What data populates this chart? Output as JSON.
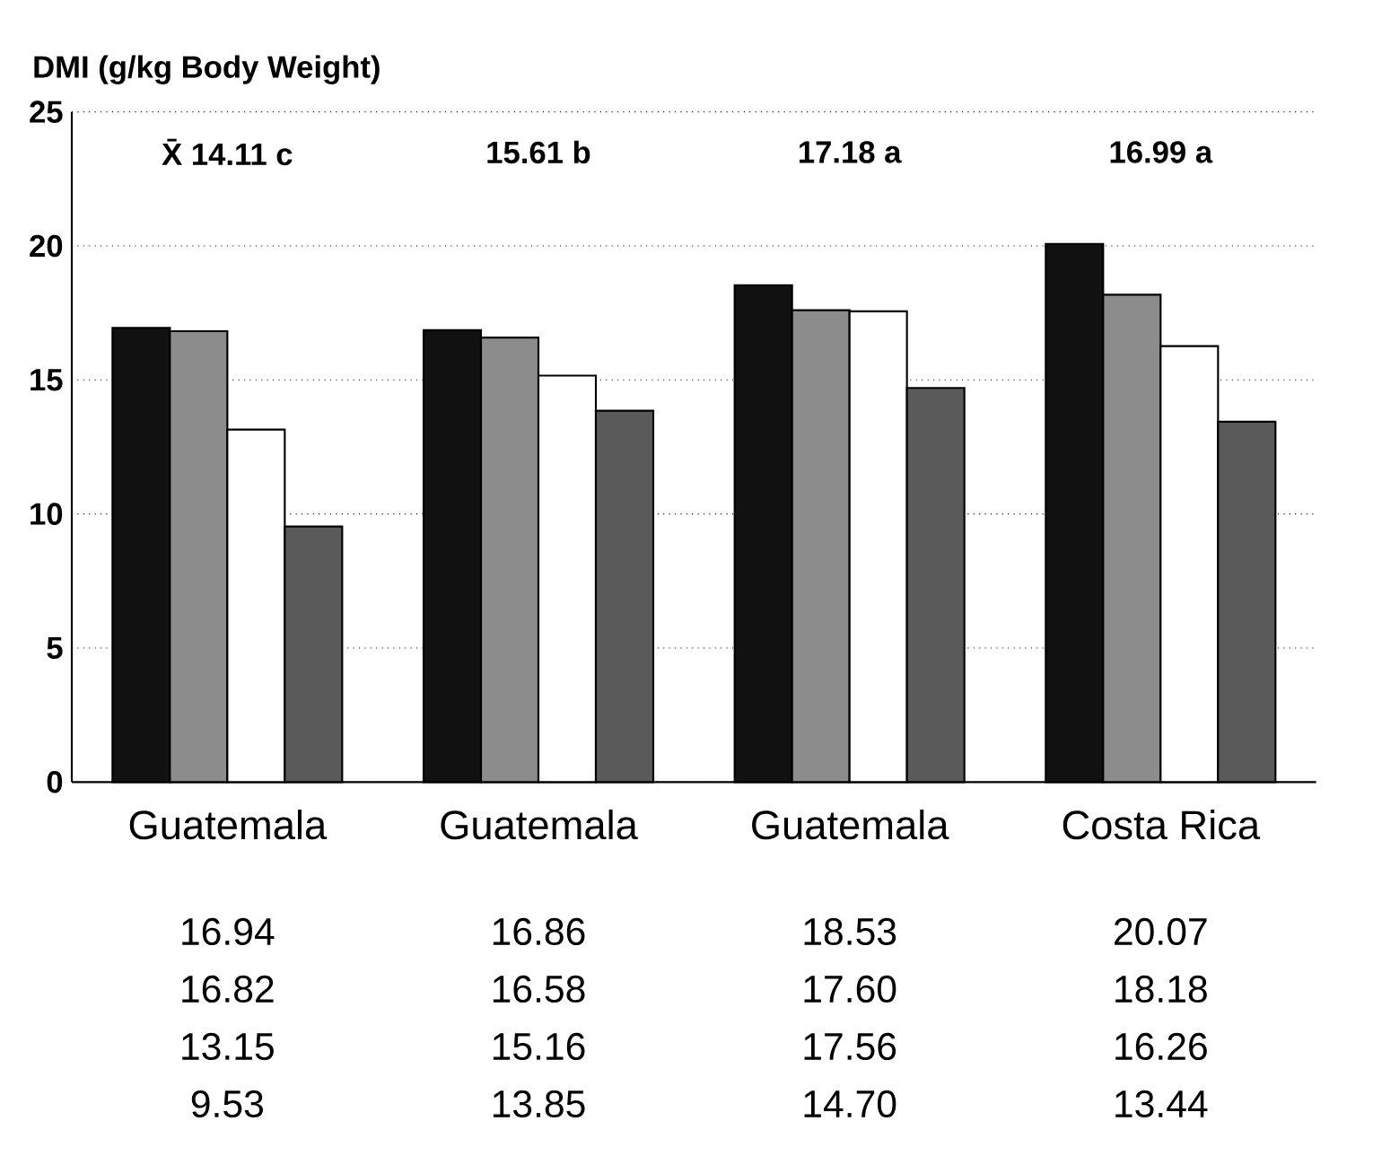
{
  "chart_data": {
    "type": "bar",
    "ylabel": "DMI (g/kg Body Weight)",
    "categories": [
      "Guatemala",
      "Guatemala",
      "Guatemala",
      "Costa Rica"
    ],
    "series": [
      {
        "color": "#111111",
        "values": [
          16.94,
          16.86,
          18.53,
          20.07
        ],
        "value_labels": [
          "16.94",
          "16.86",
          "18.53",
          "20.07"
        ]
      },
      {
        "color": "#8c8c8c",
        "values": [
          16.82,
          16.58,
          17.6,
          18.18
        ],
        "value_labels": [
          "16.82",
          "16.58",
          "17.60",
          "18.18"
        ]
      },
      {
        "color": "#ffffff",
        "values": [
          13.15,
          15.16,
          17.56,
          16.26
        ],
        "value_labels": [
          "13.15",
          "15.16",
          "17.56",
          "16.26"
        ]
      },
      {
        "color": "#5a5a5a",
        "values": [
          9.53,
          13.85,
          14.7,
          13.44
        ],
        "value_labels": [
          "9.53",
          "13.85",
          "14.70",
          "13.44"
        ]
      }
    ],
    "annotations": [
      "X̄ 14.11 c",
      "15.61 b",
      "17.18 a",
      "16.99 a"
    ],
    "ylim": [
      0,
      25
    ],
    "yticks": [
      0,
      5,
      10,
      15,
      20,
      25
    ],
    "grid": "y"
  }
}
